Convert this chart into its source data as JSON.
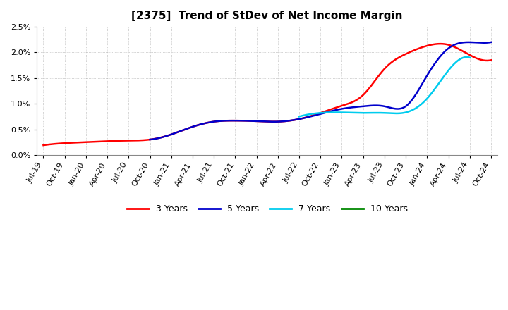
{
  "title": "[2375]  Trend of StDev of Net Income Margin",
  "x_labels": [
    "Jul-19",
    "Oct-19",
    "Jan-20",
    "Apr-20",
    "Jul-20",
    "Oct-20",
    "Jan-21",
    "Apr-21",
    "Jul-21",
    "Oct-21",
    "Jan-22",
    "Apr-22",
    "Jul-22",
    "Oct-22",
    "Jan-23",
    "Apr-23",
    "Jul-23",
    "Oct-23",
    "Jan-24",
    "Apr-24",
    "Jul-24",
    "Oct-24"
  ],
  "ylim": [
    0.0,
    0.025
  ],
  "yticks": [
    0.0,
    0.005,
    0.01,
    0.015,
    0.02,
    0.025
  ],
  "series": {
    "3 Years": {
      "color": "#ff0000",
      "data_y": [
        0.0019,
        0.0023,
        0.0025,
        0.0027,
        0.0028,
        0.003,
        0.004,
        0.0055,
        0.0065,
        0.0067,
        0.0066,
        0.0065,
        0.007,
        0.0082,
        0.0096,
        0.0117,
        0.0168,
        0.0197,
        0.0213,
        0.0215,
        0.0195,
        0.0185
      ]
    },
    "5 Years": {
      "color": "#0000cc",
      "data_y": [
        null,
        null,
        null,
        null,
        null,
        0.003,
        0.004,
        0.0055,
        0.0065,
        0.0067,
        0.0066,
        0.0065,
        0.007,
        0.008,
        0.009,
        0.0095,
        0.0095,
        0.0095,
        0.0155,
        0.0208,
        0.022,
        0.022
      ]
    },
    "7 Years": {
      "color": "#00ccee",
      "data_y": [
        null,
        null,
        null,
        null,
        null,
        null,
        null,
        null,
        null,
        null,
        null,
        null,
        0.0075,
        0.0082,
        0.0083,
        0.0082,
        0.0082,
        0.0083,
        0.011,
        0.0165,
        0.019,
        null
      ]
    },
    "10 Years": {
      "color": "#008800",
      "data_y": [
        null,
        null,
        null,
        null,
        null,
        null,
        null,
        null,
        null,
        null,
        null,
        null,
        null,
        null,
        null,
        null,
        null,
        null,
        null,
        null,
        null,
        null
      ]
    }
  },
  "legend_entries": [
    "3 Years",
    "5 Years",
    "7 Years",
    "10 Years"
  ],
  "legend_colors": [
    "#ff0000",
    "#0000cc",
    "#00ccee",
    "#008800"
  ],
  "background_color": "#ffffff",
  "grid_color": "#aaaaaa",
  "title_fontsize": 11,
  "tick_fontsize": 8
}
